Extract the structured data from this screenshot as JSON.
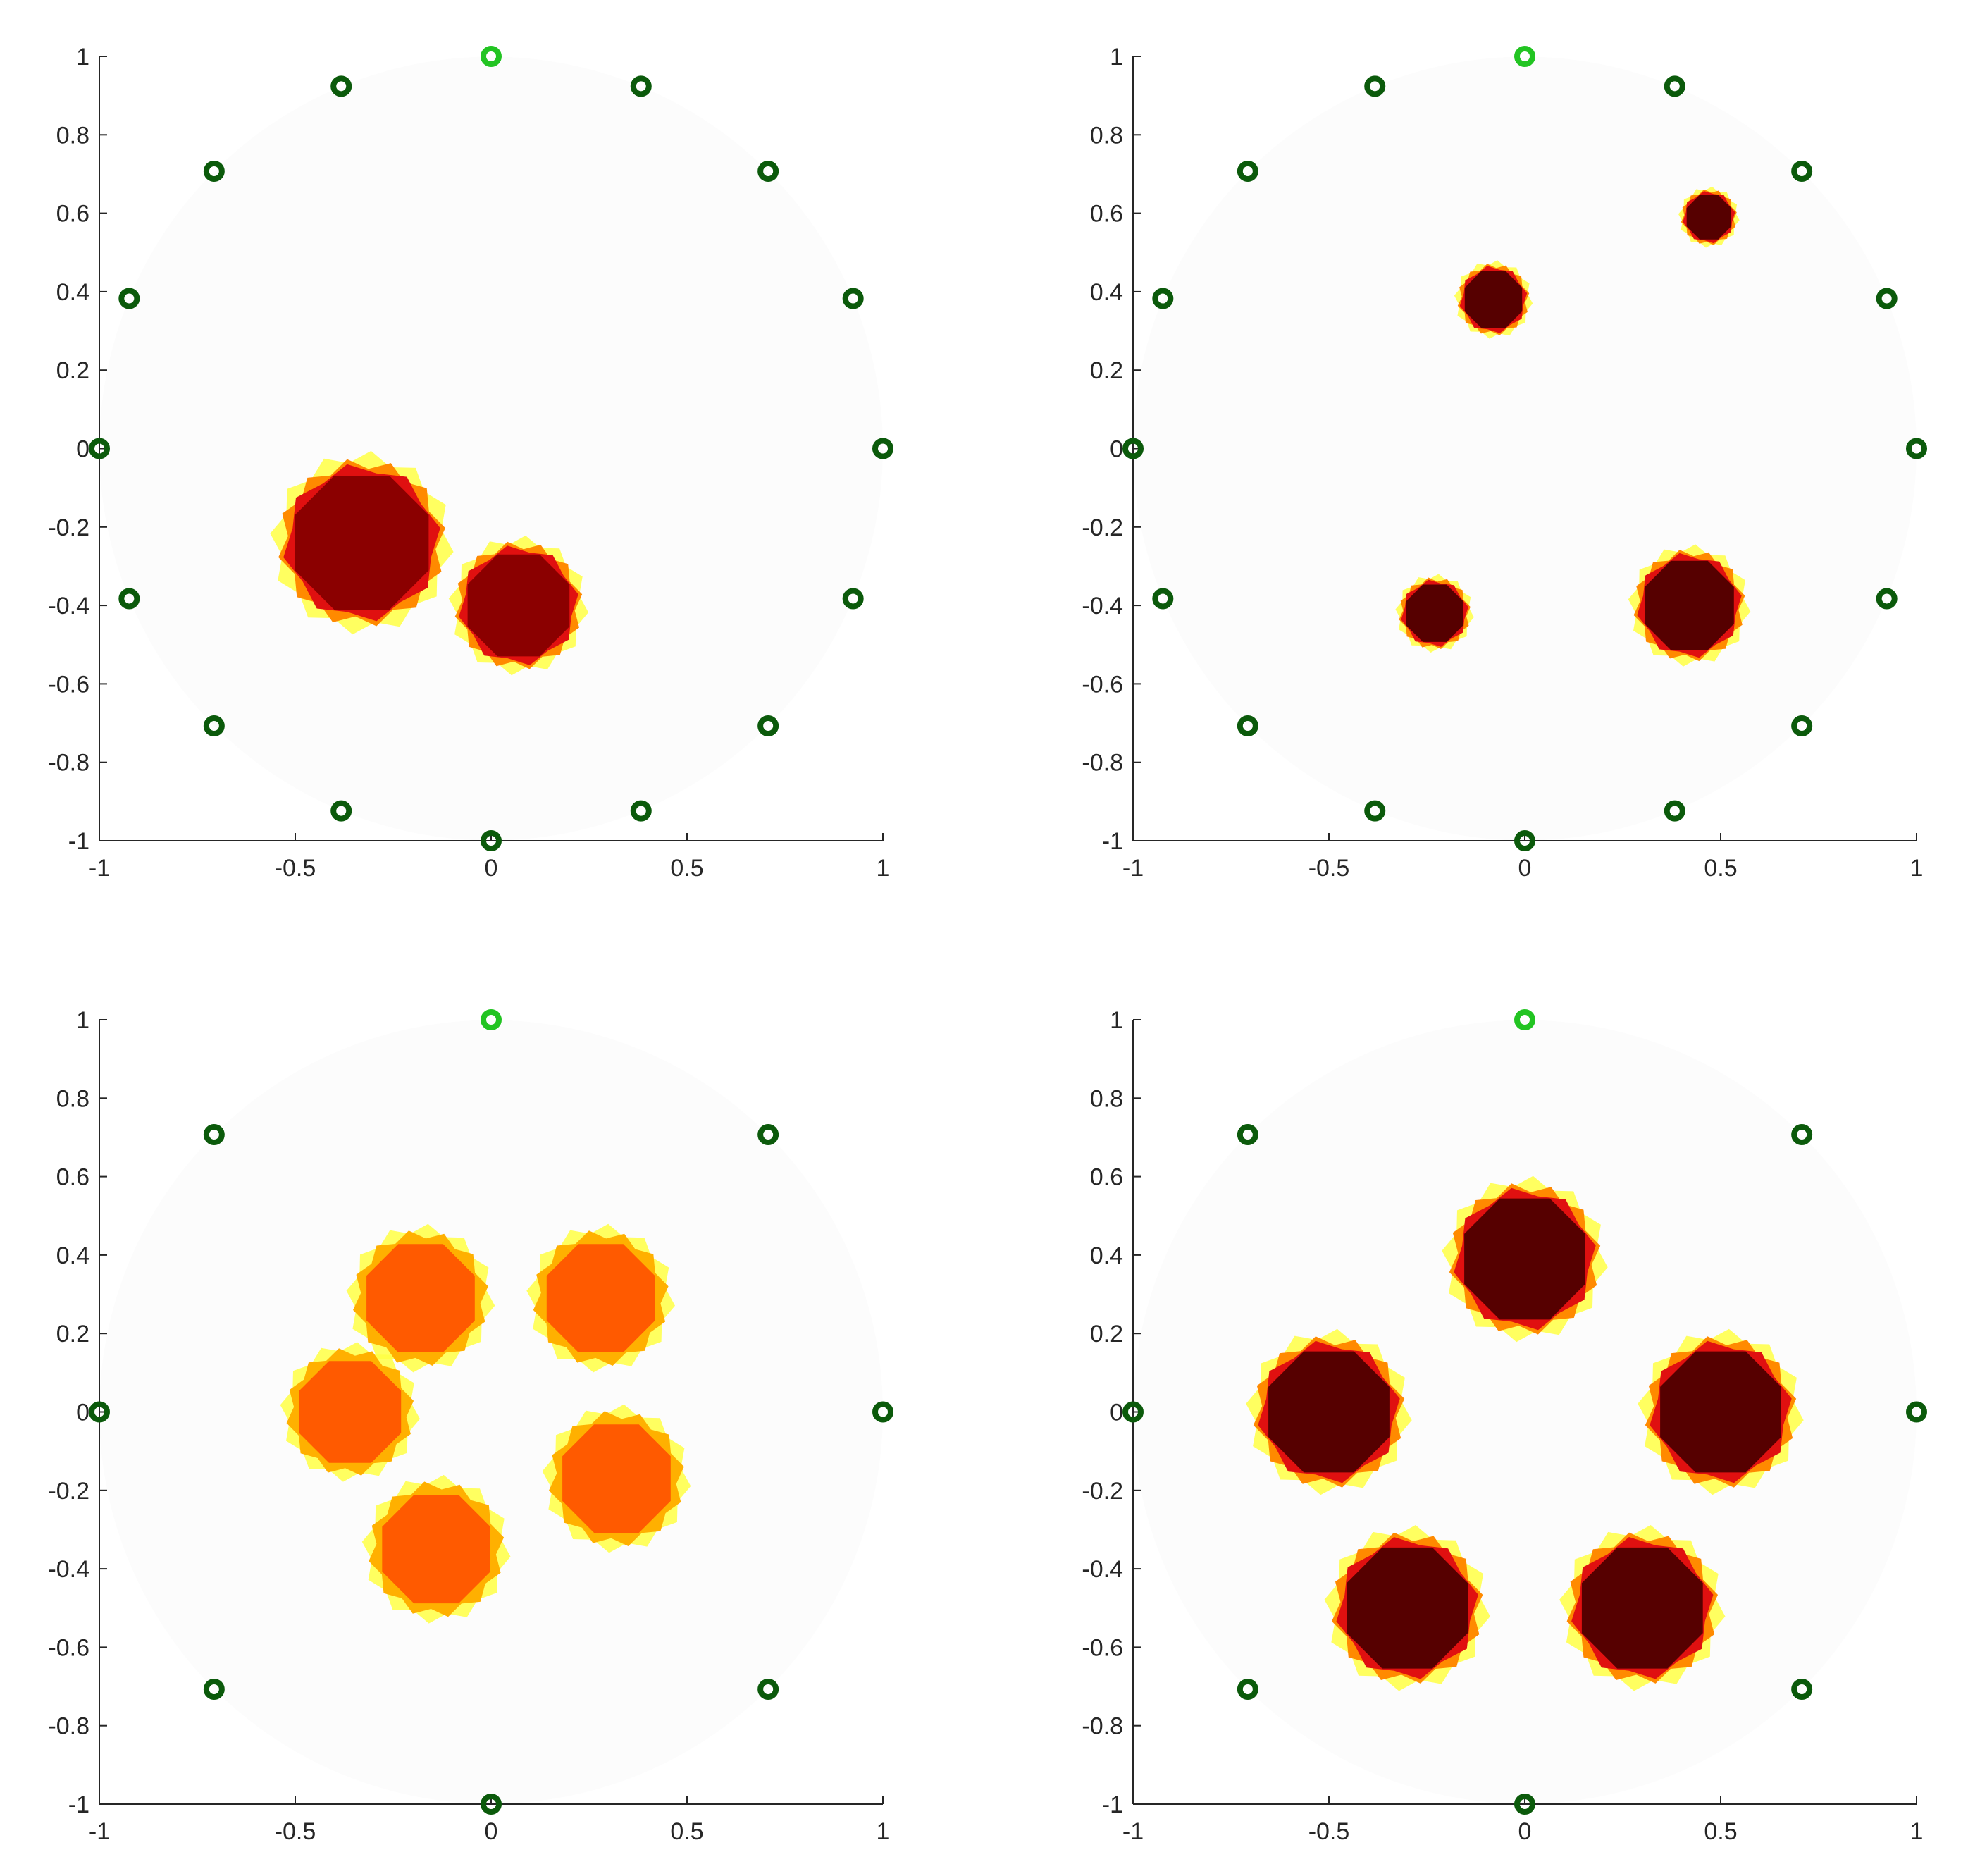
{
  "colors": {
    "electrode_dark": "#0b5a0b",
    "electrode_bright": "#22c422",
    "disk_fill": "#fcfcfc",
    "dark_red": "#8b0000",
    "darkest_red": "#560000",
    "orange": "#ff5a00",
    "yellow": "#ffff44"
  },
  "chart_data": [
    {
      "type": "scatter",
      "panel": "top-left",
      "xlim": [
        -1,
        1
      ],
      "ylim": [
        -1,
        1
      ],
      "x_ticks": [
        -1,
        -0.5,
        0,
        0.5,
        1
      ],
      "x_tick_labels": [
        "-1",
        "-0.5",
        "0",
        "0.5",
        "1"
      ],
      "y_ticks": [
        1,
        0.8,
        0.6,
        0.4,
        0.2,
        0,
        -0.2,
        -0.4,
        -0.6,
        -0.8,
        -1
      ],
      "y_tick_labels": [
        "1",
        "0.8",
        "0.6",
        "0.4",
        "0.2",
        "0",
        "-0.2",
        "-0.4",
        "-0.6",
        "-0.8",
        "-1"
      ],
      "electrode_count": 16,
      "highlighted_electrode": [
        0,
        1
      ],
      "inclusions": [
        {
          "cx": -0.33,
          "cy": -0.24,
          "r": 0.21,
          "level": "dark"
        },
        {
          "cx": 0.07,
          "cy": -0.4,
          "r": 0.16,
          "level": "dark"
        }
      ]
    },
    {
      "type": "scatter",
      "panel": "top-right",
      "xlim": [
        -1,
        1
      ],
      "ylim": [
        -1,
        1
      ],
      "x_ticks": [
        -1,
        -0.5,
        0,
        0.5,
        1
      ],
      "x_tick_labels": [
        "-1",
        "-0.5",
        "0",
        "0.5",
        "1"
      ],
      "y_ticks": [
        1,
        0.8,
        0.6,
        0.4,
        0.2,
        0,
        -0.2,
        -0.4,
        -0.6,
        -0.8,
        -1
      ],
      "y_tick_labels": [
        "1",
        "0.8",
        "0.6",
        "0.4",
        "0.2",
        "0",
        "-0.2",
        "-0.4",
        "-0.6",
        "-0.8",
        "-1"
      ],
      "electrode_count": 16,
      "highlighted_electrode": [
        0,
        1
      ],
      "inclusions": [
        {
          "cx": -0.08,
          "cy": 0.38,
          "r": 0.09,
          "level": "darkest"
        },
        {
          "cx": 0.47,
          "cy": 0.59,
          "r": 0.07,
          "level": "darkest"
        },
        {
          "cx": -0.23,
          "cy": -0.42,
          "r": 0.09,
          "level": "darkest"
        },
        {
          "cx": 0.42,
          "cy": -0.4,
          "r": 0.14,
          "level": "darkest"
        }
      ]
    },
    {
      "type": "scatter",
      "panel": "bottom-left",
      "xlim": [
        -1,
        1
      ],
      "ylim": [
        -1,
        1
      ],
      "x_ticks": [
        -1,
        -0.5,
        0,
        0.5,
        1
      ],
      "x_tick_labels": [
        "-1",
        "-0.5",
        "0",
        "0.5",
        "1"
      ],
      "y_ticks": [
        1,
        0.8,
        0.6,
        0.4,
        0.2,
        0,
        -0.2,
        -0.4,
        -0.6,
        -0.8,
        -1
      ],
      "y_tick_labels": [
        "1",
        "0.8",
        "0.6",
        "0.4",
        "0.2",
        "0",
        "-0.2",
        "-0.4",
        "-0.6",
        "-0.8",
        "-1"
      ],
      "electrode_count": 8,
      "highlighted_electrode": [
        0,
        1
      ],
      "inclusions": [
        {
          "cx": -0.18,
          "cy": 0.29,
          "r": 0.17,
          "level": "orange"
        },
        {
          "cx": 0.28,
          "cy": 0.29,
          "r": 0.17,
          "level": "orange"
        },
        {
          "cx": -0.36,
          "cy": 0.0,
          "r": 0.16,
          "level": "orange"
        },
        {
          "cx": 0.32,
          "cy": -0.17,
          "r": 0.17,
          "level": "orange"
        },
        {
          "cx": -0.14,
          "cy": -0.35,
          "r": 0.17,
          "level": "orange"
        }
      ]
    },
    {
      "type": "scatter",
      "panel": "bottom-right",
      "xlim": [
        -1,
        1
      ],
      "ylim": [
        -1,
        1
      ],
      "x_ticks": [
        -1,
        -0.5,
        0,
        0.5,
        1
      ],
      "x_tick_labels": [
        "-1",
        "-0.5",
        "0",
        "0.5",
        "1"
      ],
      "y_ticks": [
        1,
        0.8,
        0.6,
        0.4,
        0.2,
        0,
        -0.2,
        -0.4,
        -0.6,
        -0.8,
        -1
      ],
      "y_tick_labels": [
        "1",
        "0.8",
        "0.6",
        "0.4",
        "0.2",
        "0",
        "-0.2",
        "-0.4",
        "-0.6",
        "-0.8",
        "-1"
      ],
      "electrode_count": 8,
      "highlighted_electrode": [
        0,
        1
      ],
      "inclusions": [
        {
          "cx": 0.0,
          "cy": 0.39,
          "r": 0.19,
          "level": "darkest"
        },
        {
          "cx": -0.5,
          "cy": 0.0,
          "r": 0.19,
          "level": "darkest"
        },
        {
          "cx": 0.5,
          "cy": 0.0,
          "r": 0.19,
          "level": "darkest"
        },
        {
          "cx": -0.3,
          "cy": -0.5,
          "r": 0.19,
          "level": "darkest"
        },
        {
          "cx": 0.3,
          "cy": -0.5,
          "r": 0.19,
          "level": "darkest"
        }
      ]
    }
  ]
}
